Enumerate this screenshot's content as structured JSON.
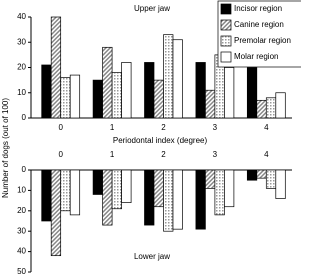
{
  "chart_data": [
    {
      "type": "bar",
      "title": "Upper jaw",
      "xlabel": "Periodontal index (degree)",
      "ylabel": "Number of dogs (out of 100)",
      "categories": [
        "0",
        "1",
        "2",
        "3",
        "4"
      ],
      "series": [
        {
          "name": "Incisor region",
          "color": "#000000",
          "pattern": "solid",
          "values": [
            21,
            15,
            22,
            22,
            20
          ]
        },
        {
          "name": "Canine region",
          "color": "#888888",
          "pattern": "hatch",
          "values": [
            40,
            28,
            15,
            11,
            7
          ]
        },
        {
          "name": "Premolar region",
          "color": "#999999",
          "pattern": "dots",
          "values": [
            16,
            18,
            33,
            25,
            8
          ]
        },
        {
          "name": "Molar region",
          "color": "#ffffff",
          "pattern": "solid",
          "values": [
            17,
            22,
            31,
            20,
            10
          ]
        }
      ],
      "ylim": [
        0,
        40
      ],
      "yticks": [
        0,
        10,
        20,
        30,
        40
      ],
      "inverted": false,
      "legend": "upper right"
    },
    {
      "type": "bar",
      "title": "Lower jaw",
      "categories": [
        "0",
        "1",
        "2",
        "3",
        "4"
      ],
      "series": [
        {
          "color": "#000000",
          "pattern": "solid",
          "values": [
            25,
            12,
            27,
            29,
            5
          ]
        },
        {
          "color": "#888888",
          "pattern": "hatch",
          "values": [
            42,
            27,
            18,
            9,
            4
          ]
        },
        {
          "color": "#999999",
          "pattern": "dots",
          "values": [
            20,
            19,
            30,
            22,
            9
          ]
        },
        {
          "color": "#ffffff",
          "pattern": "solid",
          "values": [
            22,
            16,
            29,
            18,
            14
          ]
        }
      ],
      "ylim": [
        0,
        50
      ],
      "yticks": [
        0,
        10,
        20,
        30,
        40,
        50
      ],
      "inverted": true
    }
  ]
}
